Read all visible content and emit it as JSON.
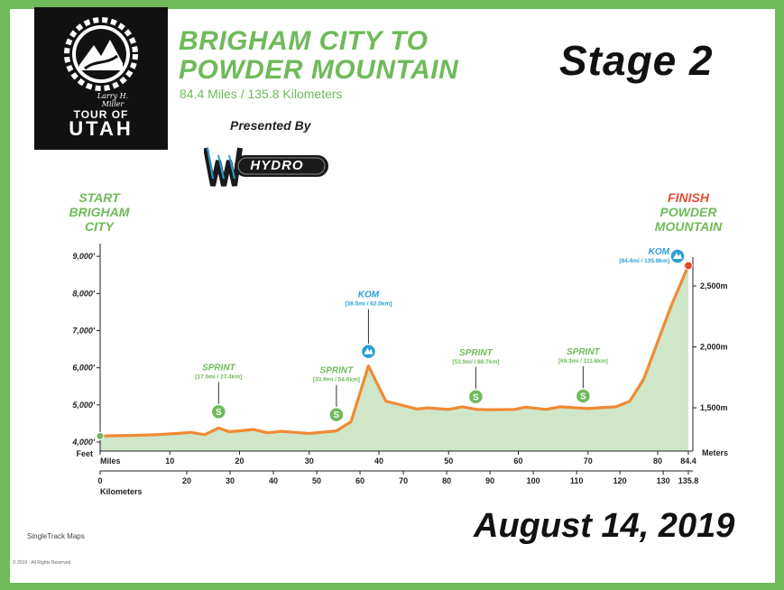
{
  "header": {
    "title_line1": "BRIGHAM CITY TO",
    "title_line2": "POWDER MOUNTAIN",
    "distance": "84.4 Miles / 135.8 Kilometers",
    "stage": "Stage 2",
    "presented_by": "Presented By",
    "sponsor": "HYDRO",
    "logo_signature": "Larry H. Miller",
    "logo_tour_of": "TOUR OF",
    "logo_utah": "UTAH"
  },
  "route": {
    "start_label": "START",
    "start_name": "BRIGHAM CITY",
    "finish_label": "FINISH",
    "finish_name": "POWDER MOUNTAIN"
  },
  "footer": {
    "date": "August 14, 2019",
    "credit": "SingleTrack Maps",
    "copyright": "© 2019 · All Rights Reserved"
  },
  "colors": {
    "frame": "#6fba5a",
    "profile_line": "#f08a35",
    "profile_fill": "#cfe6c8",
    "sprint": "#6fba5a",
    "kom": "#2a9fd6",
    "finish": "#e64a2e"
  },
  "chart_data": {
    "type": "area",
    "xlabel_top": "Miles",
    "xlabel_bottom": "Kilometers",
    "ylabel_left": "Feet",
    "ylabel_right": "Meters",
    "x_range": [
      0,
      84.4
    ],
    "y_range_ft": [
      4000,
      9500
    ],
    "mile_ticks": [
      {
        "v": 0,
        "label": "0"
      },
      {
        "v": 10,
        "label": "10"
      },
      {
        "v": 20,
        "label": "20"
      },
      {
        "v": 30,
        "label": "30"
      },
      {
        "v": 40,
        "label": "40"
      },
      {
        "v": 50,
        "label": "50"
      },
      {
        "v": 60,
        "label": "60"
      },
      {
        "v": 70,
        "label": "70"
      },
      {
        "v": 80,
        "label": "80"
      },
      {
        "v": 84.4,
        "label": "84.4"
      }
    ],
    "km_ticks": [
      {
        "v": 0,
        "label": "0"
      },
      {
        "v": 20,
        "label": "20"
      },
      {
        "v": 30,
        "label": "30"
      },
      {
        "v": 40,
        "label": "40"
      },
      {
        "v": 50,
        "label": "50"
      },
      {
        "v": 60,
        "label": "60"
      },
      {
        "v": 70,
        "label": "70"
      },
      {
        "v": 80,
        "label": "80"
      },
      {
        "v": 90,
        "label": "90"
      },
      {
        "v": 100,
        "label": "100"
      },
      {
        "v": 110,
        "label": "110"
      },
      {
        "v": 120,
        "label": "120"
      },
      {
        "v": 130,
        "label": "130"
      },
      {
        "v": 135.8,
        "label": "135.8"
      }
    ],
    "feet_ticks": [
      {
        "v": 4000,
        "label": "4,000'"
      },
      {
        "v": 5000,
        "label": "5,000'"
      },
      {
        "v": 6000,
        "label": "6,000'"
      },
      {
        "v": 7000,
        "label": "7,000'"
      },
      {
        "v": 8000,
        "label": "8,000'"
      },
      {
        "v": 9000,
        "label": "9,000'"
      }
    ],
    "meter_ticks": [
      {
        "ft": 4921,
        "label": "1,500m"
      },
      {
        "ft": 6562,
        "label": "2,000m"
      },
      {
        "ft": 8202,
        "label": "2,500m"
      }
    ],
    "x": [
      0,
      2,
      5,
      8,
      11,
      13,
      15,
      17,
      18.5,
      20,
      22,
      24,
      26,
      28,
      30,
      33.9,
      36,
      38.5,
      41,
      44,
      45.5,
      47,
      50,
      52,
      54,
      56,
      59.5,
      61,
      64,
      66,
      70,
      74,
      76,
      78,
      80,
      82,
      84.4
    ],
    "y": [
      4160,
      4170,
      4180,
      4200,
      4230,
      4260,
      4200,
      4380,
      4280,
      4300,
      4340,
      4250,
      4290,
      4260,
      4230,
      4300,
      4550,
      6050,
      5100,
      4960,
      4890,
      4920,
      4880,
      4950,
      4880,
      4870,
      4880,
      4940,
      4880,
      4950,
      4900,
      4950,
      5100,
      5700,
      6700,
      7700,
      8750
    ],
    "annotations": [
      {
        "type": "SPRINT",
        "label": "SPRINT",
        "detail": "[17.0mi / 27.4km]",
        "x": 17.0,
        "y": 4380
      },
      {
        "type": "SPRINT",
        "label": "SPRINT",
        "detail": "[33.9mi / 54.6km]",
        "x": 33.9,
        "y": 4300
      },
      {
        "type": "KOM",
        "label": "KOM",
        "detail": "[38.5mi / 62.0km]",
        "x": 38.5,
        "y": 6050
      },
      {
        "type": "SPRINT",
        "label": "SPRINT",
        "detail": "[53.9mi / 86.7km]",
        "x": 53.9,
        "y": 4880
      },
      {
        "type": "SPRINT",
        "label": "SPRINT",
        "detail": "[69.3mi / 111.6km]",
        "x": 69.3,
        "y": 4900
      },
      {
        "type": "KOM",
        "label": "KOM",
        "detail": "[84.4mi / 135.8km]",
        "x": 84.4,
        "y": 8750
      }
    ]
  }
}
